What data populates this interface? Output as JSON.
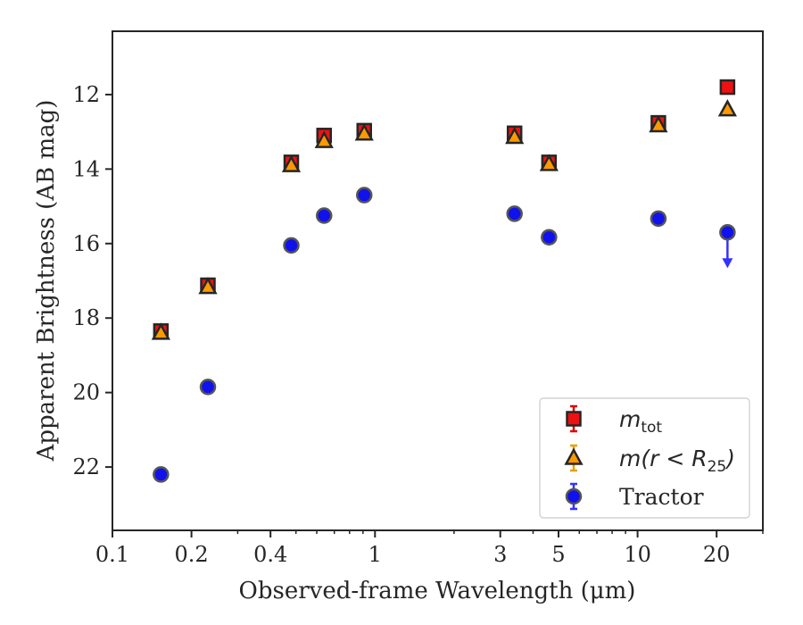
{
  "chart_data": {
    "type": "scatter",
    "xscale": "log",
    "yscale": "linear",
    "yinverted": true,
    "xlim": [
      0.1,
      30
    ],
    "ylim": [
      23.7,
      10.3
    ],
    "xlabel": "Observed-frame Wavelength (μm)",
    "ylabel": "Apparent Brightness (AB mag)",
    "x_ticks": [
      {
        "value": 0.1,
        "label": "0.1"
      },
      {
        "value": 0.2,
        "label": "0.2"
      },
      {
        "value": 0.4,
        "label": "0.4"
      },
      {
        "value": 1,
        "label": "1"
      },
      {
        "value": 3,
        "label": "3"
      },
      {
        "value": 5,
        "label": "5"
      },
      {
        "value": 10,
        "label": "10"
      },
      {
        "value": 20,
        "label": "20"
      }
    ],
    "y_ticks": [
      {
        "value": 12,
        "label": "12"
      },
      {
        "value": 14,
        "label": "14"
      },
      {
        "value": 16,
        "label": "16"
      },
      {
        "value": 18,
        "label": "18"
      },
      {
        "value": 20,
        "label": "20"
      },
      {
        "value": 22,
        "label": "22"
      }
    ],
    "grid": false,
    "legend_position": "lower-right",
    "series": [
      {
        "name": "m_tot",
        "legend_main": "m",
        "legend_sub": "tot",
        "marker": "square",
        "color": "#ee1111",
        "errcolor": "#dd0000",
        "x": [
          0.153,
          0.231,
          0.48,
          0.64,
          0.91,
          3.4,
          4.6,
          12.0,
          22.0
        ],
        "y": [
          18.35,
          17.12,
          13.82,
          13.1,
          12.97,
          13.04,
          13.82,
          12.76,
          11.8
        ],
        "yerr": [
          0.15,
          0.15,
          0.15,
          0.15,
          0.15,
          0.15,
          0.15,
          0.15,
          0.05
        ]
      },
      {
        "name": "m(r < R25)",
        "legend_main": "m(r < R",
        "legend_sub": "25",
        "legend_tail": ")",
        "marker": "triangle",
        "color": "#ff9900",
        "errcolor": "#e6a000",
        "x": [
          0.153,
          0.231,
          0.48,
          0.64,
          0.91,
          3.4,
          4.6,
          12.0,
          22.0
        ],
        "y": [
          18.4,
          17.17,
          13.9,
          13.25,
          13.05,
          13.14,
          13.87,
          12.83,
          12.4
        ],
        "yerr": [
          0.1,
          0.1,
          0.1,
          0.1,
          0.1,
          0.1,
          0.1,
          0.1,
          0.05
        ]
      },
      {
        "name": "Tractor",
        "legend_main": "Tractor",
        "marker": "circle",
        "color": "#1111ee",
        "errcolor": "#3333ff",
        "x": [
          0.153,
          0.231,
          0.48,
          0.64,
          0.91,
          3.4,
          4.6,
          12.0,
          22.0
        ],
        "y": [
          22.2,
          19.85,
          16.05,
          15.25,
          14.7,
          15.2,
          15.83,
          15.33,
          15.7
        ],
        "yerr": [
          0.05,
          0.05,
          0.05,
          0.05,
          0.05,
          0.05,
          0.05,
          0.05,
          0.05
        ],
        "upper_limit": [
          false,
          false,
          false,
          false,
          false,
          false,
          false,
          false,
          true
        ]
      }
    ]
  }
}
